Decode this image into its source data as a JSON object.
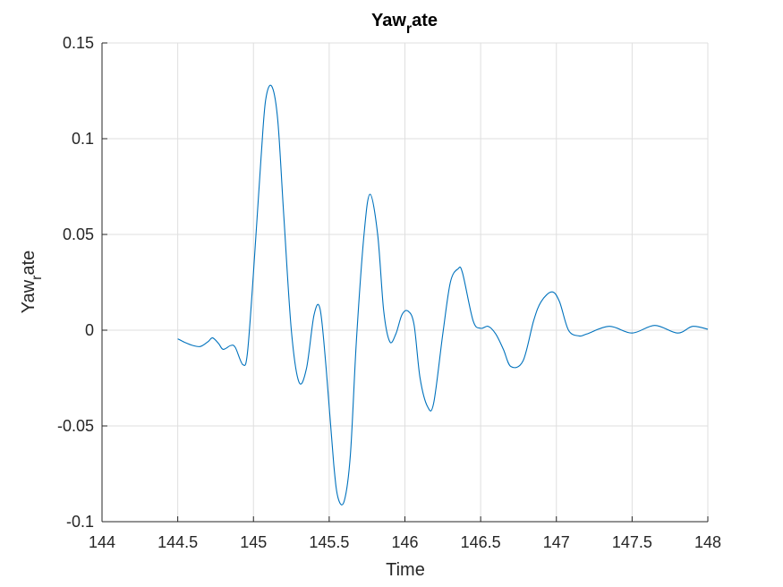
{
  "chart_data": {
    "type": "line",
    "title": {
      "main": "Yaw",
      "sub": "r",
      "rest": "ate"
    },
    "xlabel": "Time",
    "ylabel": {
      "main": "Yaw",
      "sub": "r",
      "rest": "ate"
    },
    "xlim": [
      144,
      148
    ],
    "ylim": [
      -0.1,
      0.15
    ],
    "xticks": [
      144,
      144.5,
      145,
      145.5,
      146,
      146.5,
      147,
      147.5,
      148
    ],
    "xtick_labels": [
      "144",
      "144.5",
      "145",
      "145.5",
      "146",
      "146.5",
      "147",
      "147.5",
      "148"
    ],
    "yticks": [
      -0.1,
      -0.05,
      0,
      0.05,
      0.1,
      0.15
    ],
    "ytick_labels": [
      "-0.1",
      "-0.05",
      "0",
      "0.05",
      "0.1",
      "0.15"
    ],
    "grid": true,
    "line_color": "#0072BD",
    "series": [
      {
        "x": [
          144.5,
          144.55,
          144.6,
          144.65,
          144.7,
          144.73,
          144.77,
          144.8,
          144.85,
          144.88,
          144.93,
          144.96,
          145.0,
          145.05,
          145.08,
          145.12,
          145.16,
          145.2,
          145.25,
          145.3,
          145.35,
          145.4,
          145.44,
          145.48,
          145.53,
          145.56,
          145.6,
          145.64,
          145.68,
          145.73,
          145.77,
          145.82,
          145.86,
          145.9,
          145.94,
          145.98,
          146.02,
          146.06,
          146.1,
          146.15,
          146.19,
          146.25,
          146.3,
          146.35,
          146.38,
          146.45,
          146.5,
          146.55,
          146.6,
          146.65,
          146.7,
          146.78,
          146.85,
          146.9,
          146.97,
          147.02,
          147.08,
          147.15,
          147.2,
          147.35,
          147.5,
          147.65,
          147.8,
          147.9,
          148.0
        ],
        "y": [
          -0.0045,
          -0.0065,
          -0.008,
          -0.0085,
          -0.006,
          -0.004,
          -0.007,
          -0.01,
          -0.008,
          -0.009,
          -0.018,
          -0.012,
          0.03,
          0.09,
          0.12,
          0.1275,
          0.11,
          0.06,
          0.0,
          -0.027,
          -0.02,
          0.008,
          0.011,
          -0.02,
          -0.07,
          -0.088,
          -0.089,
          -0.065,
          -0.005,
          0.05,
          0.071,
          0.05,
          0.01,
          -0.006,
          -0.002,
          0.008,
          0.01,
          0.003,
          -0.025,
          -0.04,
          -0.038,
          -0.002,
          0.025,
          0.032,
          0.03,
          0.005,
          0.001,
          0.002,
          -0.002,
          -0.01,
          -0.019,
          -0.016,
          0.005,
          0.015,
          0.02,
          0.015,
          0.0,
          -0.003,
          -0.002,
          0.002,
          -0.0015,
          0.0025,
          -0.0015,
          0.002,
          0.0005
        ]
      }
    ]
  }
}
